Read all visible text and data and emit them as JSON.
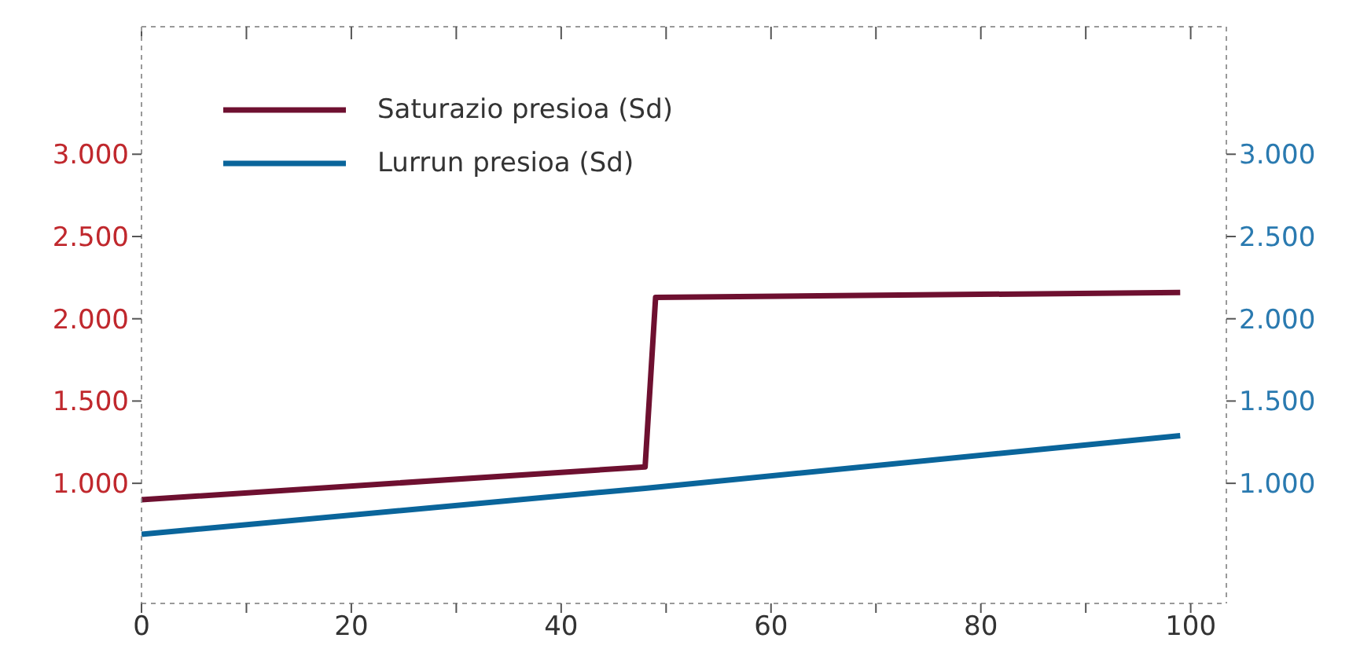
{
  "chart_data": {
    "type": "line",
    "xlim": [
      0,
      103.4
    ],
    "xticks": [
      0,
      {
        "value": 10,
        "label": null
      },
      20,
      {
        "value": 30,
        "label": null
      },
      40,
      {
        "value": 50,
        "label": null
      },
      60,
      {
        "value": 70,
        "label": null
      },
      80,
      {
        "value": 90,
        "label": null
      },
      100
    ],
    "ylim": [
      270,
      3775
    ],
    "yticks": [
      {
        "value": 1000,
        "label": "1.000"
      },
      {
        "value": 1500,
        "label": "1.500"
      },
      {
        "value": 2000,
        "label": "2.000"
      },
      {
        "value": 2500,
        "label": "2.500"
      },
      {
        "value": 3000,
        "label": "3.000"
      }
    ],
    "y2lim": [
      270,
      3775
    ],
    "y2ticks": [
      {
        "value": 1000,
        "label": "1.000"
      },
      {
        "value": 1500,
        "label": "1.500"
      },
      {
        "value": 2000,
        "label": "2.000"
      },
      {
        "value": 2500,
        "label": "2.500"
      },
      {
        "value": 3000,
        "label": "3.000"
      }
    ],
    "series": [
      {
        "name": "Saturazio presioa (Sd)",
        "color": "#6e1030",
        "x": [
          0,
          48,
          49,
          99
        ],
        "values": [
          900,
          1100,
          2130,
          2160
        ]
      },
      {
        "name": "Lurrun presioa (Sd)",
        "color": "#0a659b",
        "axis": "y2",
        "x": [
          0,
          48,
          99
        ],
        "values": [
          690,
          970,
          1290
        ]
      }
    ],
    "legend": "top left",
    "grid": false,
    "marker": "none",
    "line_style": "solid"
  }
}
